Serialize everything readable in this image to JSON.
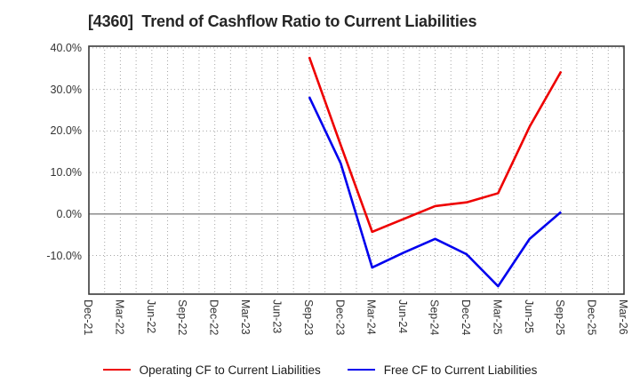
{
  "chart_data": {
    "type": "line",
    "title": "[4360]  Trend of Cashflow Ratio to Current Liabilities",
    "x_categories": [
      "Dec-21",
      "Mar-22",
      "Jun-22",
      "Sep-22",
      "Dec-22",
      "Mar-23",
      "Jun-23",
      "Sep-23",
      "Dec-23",
      "Mar-24",
      "Jun-24",
      "Sep-24",
      "Dec-24",
      "Mar-25",
      "Jun-25",
      "Sep-25",
      "Dec-25",
      "Mar-26"
    ],
    "y_ticks": [
      {
        "label": "40.0%",
        "value": 40
      },
      {
        "label": "30.0%",
        "value": 30
      },
      {
        "label": "20.0%",
        "value": 20
      },
      {
        "label": "10.0%",
        "value": 10
      },
      {
        "label": "0.0%",
        "value": 0
      },
      {
        "label": "-10.0%",
        "value": -10
      }
    ],
    "ylim": [
      -19.3,
      40.4
    ],
    "grid": true,
    "legend_position": "bottom",
    "series": [
      {
        "name": "Operating CF to Current Liabilities",
        "color": "#ee0000",
        "start_index": 7,
        "x": [
          "Sep-23",
          "Dec-23",
          "Mar-24",
          "Jun-24",
          "Sep-24",
          "Dec-24",
          "Mar-25",
          "Jun-25",
          "Sep-25"
        ],
        "values": [
          37.8,
          16.6,
          -4.3,
          -1.2,
          1.9,
          2.8,
          5.0,
          21.0,
          34.3
        ]
      },
      {
        "name": "Free CF to Current Liabilities",
        "color": "#0000ee",
        "start_index": 7,
        "x": [
          "Sep-23",
          "Dec-23",
          "Mar-24",
          "Jun-24",
          "Sep-24",
          "Dec-24",
          "Mar-25",
          "Jun-25",
          "Sep-25"
        ],
        "values": [
          28.2,
          12.2,
          -12.9,
          -9.3,
          -6.0,
          -9.7,
          -17.4,
          -6.0,
          0.5
        ]
      }
    ],
    "axis_colors": {
      "spine": "#3a3a3a",
      "zero_line": "#808080",
      "grid_dotted": "#a6a6a6"
    }
  }
}
